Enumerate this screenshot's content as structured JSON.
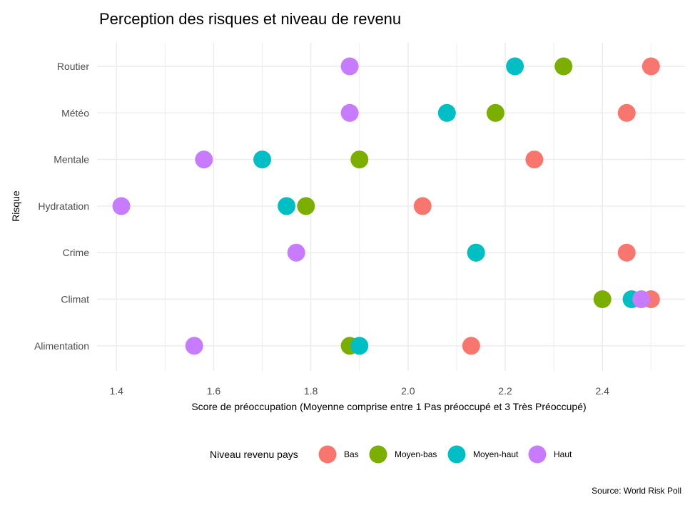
{
  "chart_data": {
    "type": "scatter",
    "title": "Perception des risques et niveau de revenu",
    "xlabel": "Score de préoccupation (Moyenne comprise entre 1 Pas préoccupé et 3 Très Préoccupé)",
    "ylabel": "Risque",
    "caption": "Source: World Risk Poll",
    "xlim": [
      1.36,
      2.57
    ],
    "x_ticks": [
      1.4,
      1.6,
      1.8,
      2.0,
      2.2,
      2.4
    ],
    "x_tick_labels": [
      "1.4",
      "1.6",
      "1.8",
      "2.0",
      "2.2",
      "2.4"
    ],
    "categories": [
      "Routier",
      "Météo",
      "Mentale",
      "Hydratation",
      "Crime",
      "Climat",
      "Alimentation"
    ],
    "legend": {
      "title": "Niveau revenu pays",
      "position": "bottom"
    },
    "grid": true,
    "series": [
      {
        "name": "Bas",
        "color": "#F8766D",
        "values": [
          2.5,
          2.45,
          2.26,
          2.03,
          2.45,
          2.5,
          2.13
        ]
      },
      {
        "name": "Moyen-bas",
        "color": "#7CAE00",
        "values": [
          2.32,
          2.18,
          1.9,
          1.79,
          2.14,
          2.4,
          1.88
        ]
      },
      {
        "name": "Moyen-haut",
        "color": "#00BFC4",
        "values": [
          2.22,
          2.08,
          1.7,
          1.75,
          2.14,
          2.46,
          1.9
        ]
      },
      {
        "name": "Haut",
        "color": "#C77CFF",
        "values": [
          1.88,
          1.88,
          1.58,
          1.41,
          1.77,
          2.48,
          1.56
        ]
      }
    ]
  }
}
